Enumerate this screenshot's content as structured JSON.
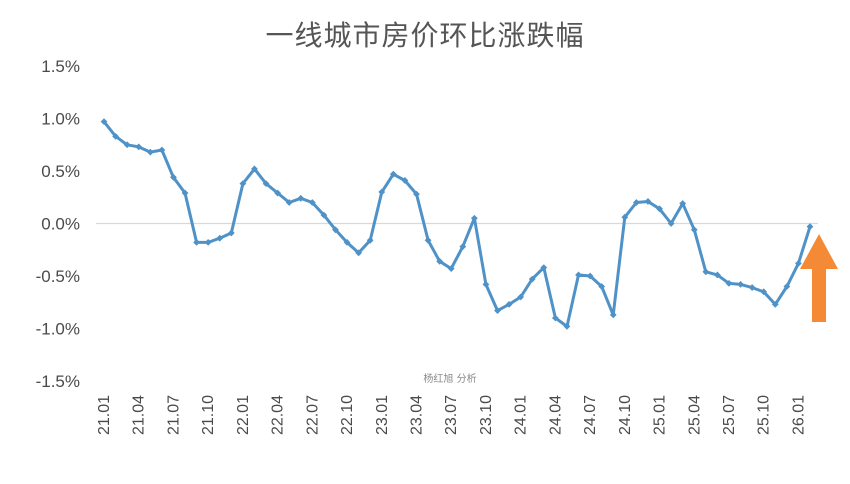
{
  "title": "一线城市房价环比涨跌幅",
  "watermark": "杨红旭 分析",
  "colors": {
    "line": "#4f92c8",
    "axis": "#d9d9d9",
    "arrow": "#f48a35",
    "text": "#4a4a4a"
  },
  "annotation": {
    "type": "arrow-up",
    "color": "#f48a35"
  },
  "chart_data": {
    "type": "line",
    "title": "一线城市房价环比涨跌幅",
    "xlabel": "",
    "ylabel": "",
    "ylim": [
      -1.5,
      1.5
    ],
    "y_ticks": [
      "1.5%",
      "1.0%",
      "0.5%",
      "0.0%",
      "-0.5%",
      "-1.0%",
      "-1.5%"
    ],
    "y_tick_values": [
      1.5,
      1.0,
      0.5,
      0.0,
      -0.5,
      -1.0,
      -1.5
    ],
    "x_tick_labels": [
      "21.01",
      "21.04",
      "21.07",
      "21.10",
      "22.01",
      "22.04",
      "22.07",
      "22.10",
      "23.01",
      "23.04",
      "23.07",
      "23.10",
      "24.01",
      "24.04",
      "24.07",
      "24.10",
      "25.01",
      "25.04",
      "25.07",
      "25.10",
      "26.01"
    ],
    "x_tick_indices": [
      0,
      3,
      6,
      9,
      12,
      15,
      18,
      21,
      24,
      27,
      30,
      33,
      36,
      39,
      42,
      45,
      48,
      51,
      54,
      57,
      60
    ],
    "grid": false,
    "series": [
      {
        "values": [
          0.97,
          0.83,
          0.75,
          0.73,
          0.68,
          0.7,
          0.44,
          0.29,
          -0.18,
          -0.18,
          -0.14,
          -0.09,
          0.38,
          0.52,
          0.38,
          0.29,
          0.2,
          0.24,
          0.2,
          0.08,
          -0.06,
          -0.18,
          -0.28,
          -0.16,
          0.3,
          0.47,
          0.41,
          0.28,
          -0.16,
          -0.36,
          -0.43,
          -0.22,
          0.05,
          -0.58,
          -0.83,
          -0.77,
          -0.7,
          -0.53,
          -0.42,
          -0.9,
          -0.98,
          -0.49,
          -0.5,
          -0.6,
          -0.87,
          0.06,
          0.2,
          0.21,
          0.14,
          0.0,
          0.19,
          -0.06,
          -0.46,
          -0.49,
          -0.57,
          -0.58,
          -0.61,
          -0.65,
          -0.77,
          -0.6,
          -0.38,
          -0.03
        ]
      }
    ]
  }
}
